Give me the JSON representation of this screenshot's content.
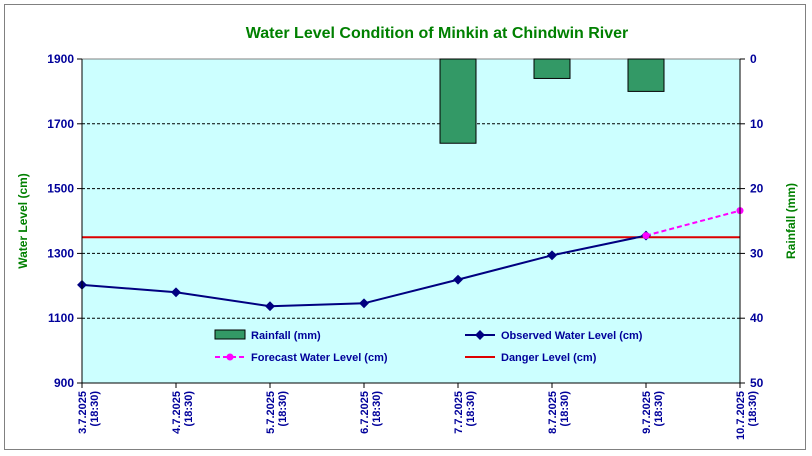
{
  "chart_data": {
    "type": "combo",
    "title": "Water Level Condition of Minkin at Chindwin River",
    "y_left_label": "Water Level (cm)",
    "y_right_label": "Rainfall (mm)",
    "y_left_lim": [
      900,
      1900
    ],
    "y_left_ticks": [
      "900",
      "1100",
      "1300",
      "1500",
      "1700",
      "1900"
    ],
    "y_right_lim": [
      0,
      50
    ],
    "y_right_inverted": true,
    "y_right_ticks": [
      "0",
      "10",
      "20",
      "30",
      "40",
      "50"
    ],
    "grid": "horizontal dashed",
    "legend_position": "bottom-center",
    "categories": [
      [
        "3.7.2025",
        "(18:30)"
      ],
      [
        "4.7.2025",
        "(18:30)"
      ],
      [
        "5.7.2025",
        "(18:30)"
      ],
      [
        "6.7.2025",
        "(18:30)"
      ],
      [
        "7.7.2025",
        "(18:30)"
      ],
      [
        "8.7.2025",
        "(18:30)"
      ],
      [
        "9.7.2025",
        "(18:30)"
      ],
      [
        "10.7.2025",
        "(18:30)"
      ]
    ],
    "series": [
      {
        "name": "Rainfall (mm)",
        "kind": "bar",
        "axis": "right",
        "color": "#339966",
        "values": [
          0,
          0,
          0,
          0,
          13,
          3,
          5,
          0
        ]
      },
      {
        "name": "Observed Water Level (cm)",
        "kind": "line",
        "axis": "left",
        "color": "#000080",
        "values": [
          1203,
          1180,
          1137,
          1146,
          1219,
          1294,
          1355,
          null
        ]
      },
      {
        "name": "Forecast Water Level (cm)",
        "kind": "dashed-line",
        "axis": "left",
        "color": "#ff00ff",
        "values": [
          null,
          null,
          null,
          null,
          null,
          null,
          1355,
          1432
        ]
      },
      {
        "name": "Danger Level (cm)",
        "kind": "hline",
        "axis": "left",
        "color": "#dd0000",
        "value": 1350
      }
    ]
  },
  "colors": {
    "plot_background": "#ccffff",
    "frame_border": "#808080",
    "title": "#008000",
    "tick_labels": "#00009a"
  }
}
